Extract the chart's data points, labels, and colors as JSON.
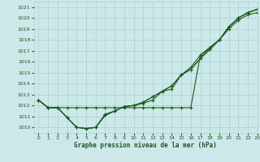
{
  "title": "Graphe pression niveau de la mer (hPa)",
  "background_color": "#cce8e8",
  "grid_color": "#b0d4d4",
  "line_color": "#1a5c1a",
  "xlim": [
    -0.5,
    23
  ],
  "ylim": [
    1009.5,
    1021.5
  ],
  "xticks": [
    0,
    1,
    2,
    3,
    4,
    5,
    6,
    7,
    8,
    9,
    10,
    11,
    12,
    13,
    14,
    15,
    16,
    17,
    18,
    19,
    20,
    21,
    22,
    23
  ],
  "yticks": [
    1010,
    1011,
    1012,
    1013,
    1014,
    1015,
    1016,
    1017,
    1018,
    1019,
    1020,
    1021
  ],
  "series": [
    [
      1012.5,
      1011.8,
      1011.8,
      1010.9,
      1010.0,
      1009.9,
      1010.0,
      1011.2,
      1011.5,
      1011.9,
      1012.0,
      1012.2,
      1012.5,
      1013.3,
      1013.5,
      1014.8,
      1015.5,
      1016.6,
      1017.3,
      1018.0,
      1019.2,
      1020.0,
      1020.5,
      1020.8
    ],
    [
      1012.5,
      1011.8,
      1011.8,
      1011.8,
      1011.8,
      1011.8,
      1011.8,
      1011.8,
      1011.8,
      1011.8,
      1011.8,
      1011.8,
      1011.8,
      1011.8,
      1011.8,
      1011.8,
      1011.8,
      1016.6,
      1017.3,
      1018.0,
      1019.2,
      1020.0,
      1020.5,
      1020.8
    ],
    [
      1012.5,
      1011.8,
      1011.8,
      1010.9,
      1010.0,
      1009.9,
      1010.0,
      1011.1,
      1011.5,
      1011.9,
      1012.0,
      1012.3,
      1012.8,
      1013.3,
      1013.8,
      1014.8,
      1015.3,
      1016.3,
      1017.1,
      1018.0,
      1019.0,
      1019.8,
      1020.3,
      1020.5
    ],
    [
      1012.5,
      1011.8,
      1011.8,
      1010.9,
      1010.0,
      1009.9,
      1010.0,
      1011.1,
      1011.5,
      1011.9,
      1012.0,
      1012.3,
      1012.8,
      1013.3,
      1013.8,
      1014.8,
      1015.3,
      1016.3,
      1017.3,
      1018.0,
      1019.2,
      1020.0,
      1020.5,
      1020.8
    ]
  ]
}
